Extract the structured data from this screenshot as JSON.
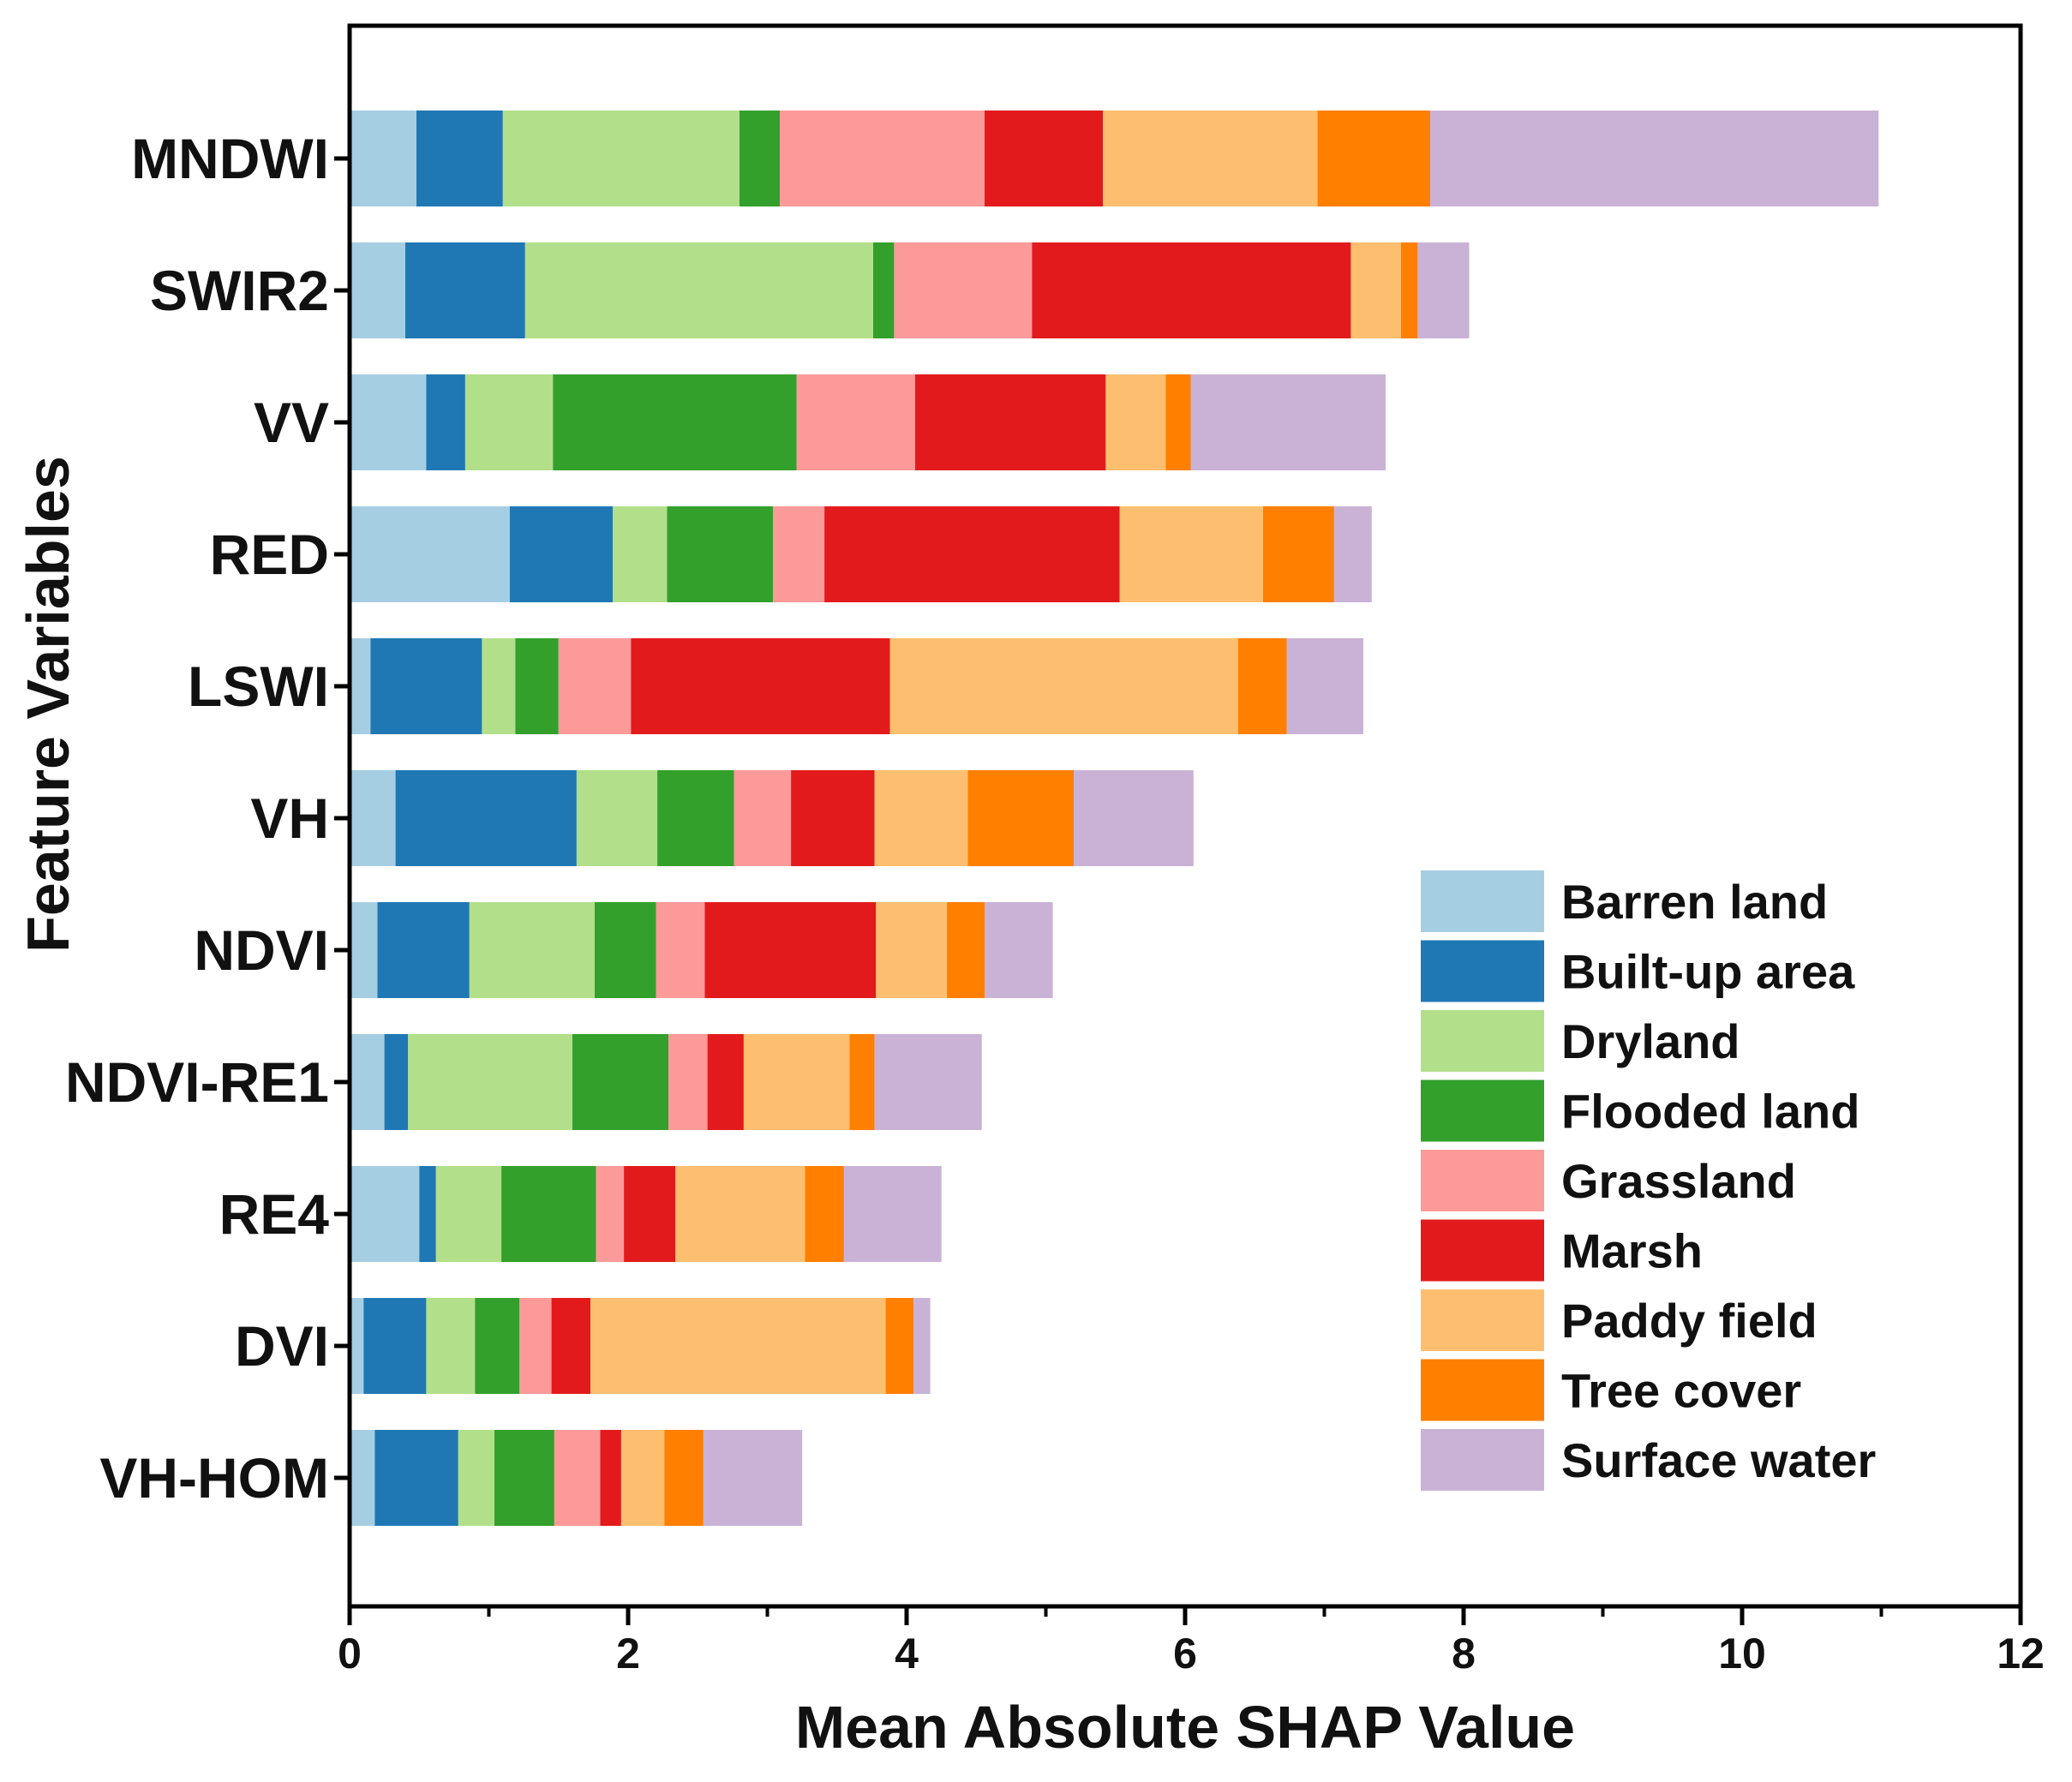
{
  "chart_data": {
    "type": "bar",
    "orientation": "horizontal",
    "stacked": true,
    "title": "",
    "xlabel": "Mean Absolute SHAP Value",
    "ylabel": "Feature Variables",
    "xlim": [
      0,
      12
    ],
    "xticks": [
      "0",
      "2",
      "4",
      "6",
      "8",
      "10",
      "12"
    ],
    "grid": false,
    "legend_position": "right",
    "categories": [
      "MNDWI",
      "SWIR2",
      "VV",
      "RED",
      "LSWI",
      "VH",
      "NDVI",
      "NDVI-RE1",
      "RE4",
      "DVI",
      "VH-HOM"
    ],
    "series": [
      {
        "name": "Barren land",
        "color": "#a6cee3",
        "values": [
          0.48,
          0.4,
          0.55,
          1.15,
          0.15,
          0.33,
          0.2,
          0.25,
          0.5,
          0.1,
          0.18
        ]
      },
      {
        "name": "Built-up area",
        "color": "#1f78b4",
        "values": [
          0.62,
          0.86,
          0.28,
          0.74,
          0.8,
          1.3,
          0.66,
          0.17,
          0.12,
          0.45,
          0.6
        ]
      },
      {
        "name": "Dryland",
        "color": "#b2df8a",
        "values": [
          1.7,
          2.5,
          0.63,
          0.39,
          0.24,
          0.58,
          0.9,
          1.18,
          0.47,
          0.35,
          0.26
        ]
      },
      {
        "name": "Flooded land",
        "color": "#33a02c",
        "values": [
          0.29,
          0.15,
          1.75,
          0.76,
          0.31,
          0.55,
          0.44,
          0.69,
          0.68,
          0.32,
          0.43
        ]
      },
      {
        "name": "Grassland",
        "color": "#fb9a99",
        "values": [
          1.47,
          0.99,
          0.85,
          0.37,
          0.52,
          0.41,
          0.35,
          0.28,
          0.2,
          0.23,
          0.33
        ]
      },
      {
        "name": "Marsh",
        "color": "#e31a1c",
        "values": [
          0.85,
          2.29,
          1.37,
          2.12,
          1.86,
          0.6,
          1.23,
          0.26,
          0.37,
          0.28,
          0.15
        ]
      },
      {
        "name": "Paddy field",
        "color": "#fdbf6f",
        "values": [
          1.54,
          0.36,
          0.43,
          1.03,
          2.5,
          0.67,
          0.51,
          0.76,
          0.93,
          2.12,
          0.31
        ]
      },
      {
        "name": "Tree cover",
        "color": "#ff7f00",
        "values": [
          0.81,
          0.12,
          0.18,
          0.51,
          0.35,
          0.76,
          0.27,
          0.18,
          0.28,
          0.2,
          0.28
        ]
      },
      {
        "name": "Surface water",
        "color": "#cab2d6",
        "values": [
          3.22,
          0.37,
          1.4,
          0.27,
          0.55,
          0.86,
          0.49,
          0.77,
          0.7,
          0.12,
          0.71
        ]
      }
    ]
  }
}
